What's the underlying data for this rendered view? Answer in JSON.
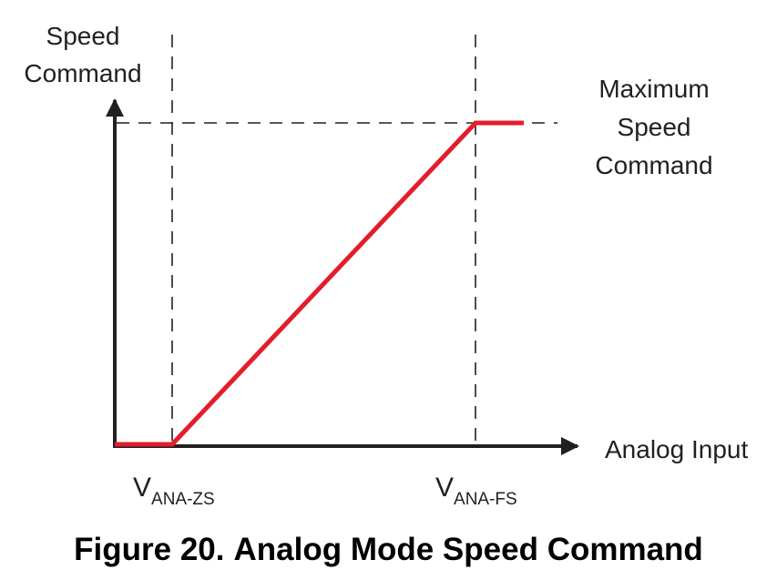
{
  "diagram": {
    "y_axis_label": [
      "Speed",
      "Command"
    ],
    "x_axis_label": "Analog Input",
    "max_label": [
      "Maximum",
      "Speed",
      "Command"
    ],
    "x_markers": [
      {
        "main": "V",
        "sub": "ANA-ZS"
      },
      {
        "main": "V",
        "sub": "ANA-FS"
      }
    ],
    "colors": {
      "curve": "#e31d2b",
      "axis": "#231f20",
      "guides": "#231f20"
    }
  },
  "caption": {
    "number": "Figure 20.",
    "title": "Analog Mode Speed Command"
  }
}
